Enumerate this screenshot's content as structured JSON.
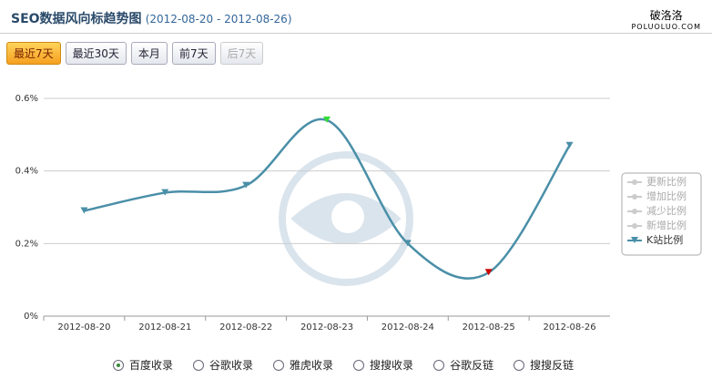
{
  "header": {
    "title": "SEO数据风向标趋势图",
    "date_range": "(2012-08-20 - 2012-08-26)",
    "brand": "破洛洛",
    "brand_url": "POLUOLUO.COM"
  },
  "buttons": [
    {
      "label": "最近7天",
      "active": true
    },
    {
      "label": "最近30天"
    },
    {
      "label": "本月"
    },
    {
      "label": "前7天"
    },
    {
      "label": "后7天",
      "disabled": true
    }
  ],
  "chart_data": {
    "type": "line",
    "categories": [
      "2012-08-20",
      "2012-08-21",
      "2012-08-22",
      "2012-08-23",
      "2012-08-24",
      "2012-08-25",
      "2012-08-26"
    ],
    "series": [
      {
        "name": "K站比例",
        "color": "#4a8fa8",
        "values": [
          0.29,
          0.34,
          0.36,
          0.54,
          0.2,
          0.12,
          0.47
        ]
      }
    ],
    "inactive_series": [
      "更新比例",
      "增加比例",
      "减少比例",
      "新增比例"
    ],
    "max_color": "#33dd33",
    "min_color": "#cc0000",
    "ylim": [
      0,
      0.6
    ],
    "yticks": [
      {
        "value": 0,
        "label": "0%"
      },
      {
        "value": 0.2,
        "label": "0.2%"
      },
      {
        "value": 0.4,
        "label": "0.4%"
      },
      {
        "value": 0.6,
        "label": "0.6%"
      }
    ],
    "grid": true
  },
  "options": [
    {
      "label": "百度收录",
      "checked": true
    },
    {
      "label": "谷歌收录"
    },
    {
      "label": "雅虎收录"
    },
    {
      "label": "搜搜收录"
    },
    {
      "label": "谷歌反链"
    },
    {
      "label": "搜搜反链"
    }
  ]
}
